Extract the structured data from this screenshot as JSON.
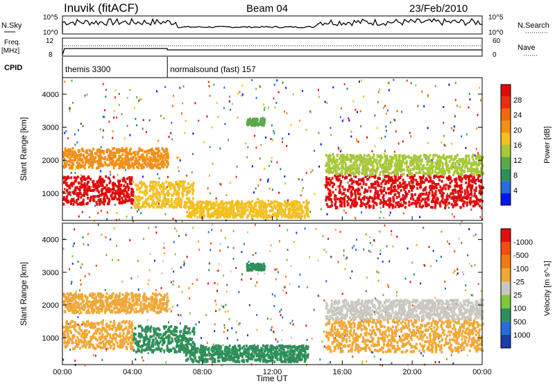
{
  "header": {
    "station": "Inuvik (fitACF)",
    "beam": "Beam 04",
    "date": "23/Feb/2010"
  },
  "top_panels": {
    "nsky_label": "N.Sky",
    "nsky_ticks": [
      "10^5",
      "10^0"
    ],
    "nsearch_label": "N.Search",
    "nsearch_ticks": [
      "10^5",
      "10^0"
    ],
    "freq_label": "Freq.",
    "freq_unit": "[MHz]",
    "freq_ticks": [
      "12",
      "8"
    ],
    "nave_label": "Nave",
    "nave_ticks": [
      "60",
      "0"
    ],
    "cpid_label": "CPID",
    "cpid_segments": [
      {
        "label": "themis 3300",
        "start_hour": 0,
        "end_hour": 6
      },
      {
        "label": "normalsound (fast) 157",
        "start_hour": 6,
        "end_hour": 24
      }
    ]
  },
  "chart_data": [
    {
      "type": "heatmap",
      "panel": "power",
      "ylabel": "Slant Range [km]",
      "y_ticks": [
        1000,
        2000,
        3000,
        4000
      ],
      "ylim": [
        180,
        4500
      ],
      "x_ticks": [
        "00:00",
        "04:00",
        "08:00",
        "12:00",
        "16:00",
        "20:00",
        "00:00"
      ],
      "xlim_hours": [
        0,
        24
      ],
      "colorbar_label": "Power [dB]",
      "colorbar_ticks": [
        "4",
        "8",
        "12",
        "16",
        "20",
        "24",
        "28"
      ],
      "colorbar_colors": [
        "#0018f0",
        "#2a6cd8",
        "#2e8f5a",
        "#5ca84a",
        "#a7c83a",
        "#f2c020",
        "#f29018",
        "#ee6a10",
        "#e83010",
        "#e00a0a"
      ],
      "regions": [
        {
          "t0": 0.0,
          "t1": 4.0,
          "r0": 700,
          "r1": 1550,
          "level": 28
        },
        {
          "t0": 4.0,
          "t1": 7.5,
          "r0": 600,
          "r1": 1400,
          "level": 16
        },
        {
          "t0": 0.0,
          "t1": 6.0,
          "r0": 1800,
          "r1": 2400,
          "level": 18
        },
        {
          "t0": 7.0,
          "t1": 14.0,
          "r0": 300,
          "r1": 800,
          "level": 14
        },
        {
          "t0": 15.0,
          "t1": 24.0,
          "r0": 600,
          "r1": 1600,
          "level": 26
        },
        {
          "t0": 15.0,
          "t1": 24.0,
          "r0": 1600,
          "r1": 2200,
          "level": 12
        },
        {
          "t0": 10.5,
          "t1": 11.5,
          "r0": 3100,
          "r1": 3300,
          "level": 10
        }
      ]
    },
    {
      "type": "heatmap",
      "panel": "velocity",
      "ylabel": "Slant Range [km]",
      "y_ticks": [
        1000,
        2000,
        3000,
        4000
      ],
      "ylim": [
        180,
        4500
      ],
      "x_ticks": [
        "00:00",
        "04:00",
        "08:00",
        "12:00",
        "16:00",
        "20:00",
        "00:00"
      ],
      "xlim_hours": [
        0,
        24
      ],
      "xlabel": "Time UT",
      "colorbar_label": "Velocity [m s^-1]",
      "colorbar_ticks": [
        "1000",
        "500",
        "100",
        "25",
        "-25",
        "-100",
        "-500",
        "-1000"
      ],
      "colorbar_colors": [
        "#1c3ca8",
        "#2a6cd8",
        "#2e8f5a",
        "#7cc83a",
        "#c8c8c0",
        "#f0a838",
        "#f07a18",
        "#ee5010",
        "#e01010"
      ],
      "regions": [
        {
          "t0": 0.0,
          "t1": 4.0,
          "r0": 700,
          "r1": 1550,
          "level": -100
        },
        {
          "t0": 4.0,
          "t1": 7.5,
          "r0": 600,
          "r1": 1400,
          "level": 100
        },
        {
          "t0": 0.0,
          "t1": 6.0,
          "r0": 1800,
          "r1": 2400,
          "level": -100
        },
        {
          "t0": 7.0,
          "t1": 14.0,
          "r0": 300,
          "r1": 800,
          "level": 100
        },
        {
          "t0": 15.0,
          "t1": 24.0,
          "r0": 600,
          "r1": 1600,
          "level": -100
        },
        {
          "t0": 15.0,
          "t1": 24.0,
          "r0": 1600,
          "r1": 2200,
          "level": 0
        },
        {
          "t0": 10.5,
          "t1": 11.5,
          "r0": 3100,
          "r1": 3300,
          "level": 100
        }
      ]
    }
  ]
}
